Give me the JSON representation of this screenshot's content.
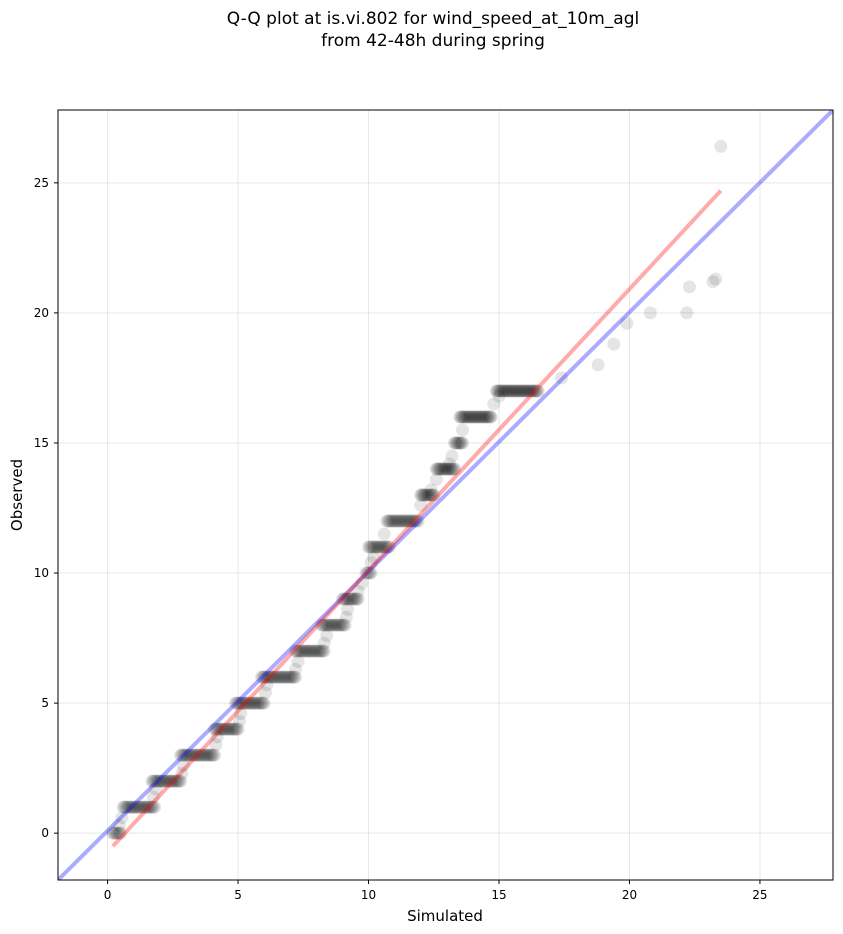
{
  "chart_data": {
    "type": "scatter",
    "title_line1": "Q-Q plot at is.vi.802 for wind_speed_at_10m_agl",
    "title_line2": "from 42-48h during spring",
    "xlabel": "Simulated",
    "ylabel": "Observed",
    "xlim": [
      -1.9,
      27.8
    ],
    "ylim": [
      -1.8,
      27.8
    ],
    "xticks": [
      0,
      5,
      10,
      15,
      20,
      25
    ],
    "yticks": [
      0,
      5,
      10,
      15,
      20,
      25
    ],
    "grid": true,
    "colors": {
      "points": "#000000",
      "identity_line": "#0000ff",
      "fit_line": "#ff0000",
      "grid": "#b0b0b0"
    },
    "reference_line": {
      "name": "1:1 line",
      "from": [
        -1.9,
        -1.8
      ],
      "to": [
        27.8,
        27.8
      ]
    },
    "fit_line": {
      "from": [
        0.2,
        -0.5
      ],
      "to": [
        23.5,
        24.7
      ]
    },
    "series": [
      {
        "steps": [
          {
            "y": 0,
            "x0": 0.2,
            "x1": 0.5
          },
          {
            "y": 1,
            "x0": 0.6,
            "x1": 1.8
          },
          {
            "y": 2,
            "x0": 1.7,
            "x1": 2.8
          },
          {
            "y": 3,
            "x0": 2.8,
            "x1": 4.1
          },
          {
            "y": 4,
            "x0": 4.1,
            "x1": 5.0
          },
          {
            "y": 5,
            "x0": 4.9,
            "x1": 6.0
          },
          {
            "y": 6,
            "x0": 5.9,
            "x1": 7.2
          },
          {
            "y": 7,
            "x0": 7.2,
            "x1": 8.3
          },
          {
            "y": 8,
            "x0": 8.2,
            "x1": 9.1
          },
          {
            "y": 9,
            "x0": 9.0,
            "x1": 9.6
          },
          {
            "y": 10,
            "x0": 9.9,
            "x1": 10.1
          },
          {
            "y": 11,
            "x0": 10.0,
            "x1": 10.8
          },
          {
            "y": 12,
            "x0": 10.7,
            "x1": 11.9
          },
          {
            "y": 13,
            "x0": 12.0,
            "x1": 12.5
          },
          {
            "y": 14,
            "x0": 12.6,
            "x1": 13.3
          },
          {
            "y": 15,
            "x0": 13.3,
            "x1": 13.6
          },
          {
            "y": 16,
            "x0": 13.5,
            "x1": 14.7
          },
          {
            "y": 17,
            "x0": 14.9,
            "x1": 16.5
          }
        ],
        "transitions": [
          [
            0.45,
            0.3
          ],
          [
            0.55,
            0.6
          ],
          [
            1.75,
            1.4
          ],
          [
            1.85,
            1.7
          ],
          [
            2.85,
            2.3
          ],
          [
            2.9,
            2.6
          ],
          [
            4.15,
            3.4
          ],
          [
            4.2,
            3.7
          ],
          [
            5.05,
            4.3
          ],
          [
            5.1,
            4.6
          ],
          [
            6.05,
            5.4
          ],
          [
            6.1,
            5.7
          ],
          [
            7.2,
            6.3
          ],
          [
            7.3,
            6.6
          ],
          [
            8.3,
            7.3
          ],
          [
            8.4,
            7.6
          ],
          [
            9.15,
            8.3
          ],
          [
            9.2,
            8.6
          ],
          [
            9.6,
            9.3
          ],
          [
            9.75,
            9.6
          ],
          [
            10.1,
            10.4
          ],
          [
            10.2,
            10.6
          ],
          [
            10.6,
            11.5
          ],
          [
            12.0,
            12.6
          ],
          [
            12.4,
            13.2
          ],
          [
            12.6,
            13.6
          ],
          [
            13.1,
            14.2
          ],
          [
            13.2,
            14.5
          ],
          [
            13.6,
            15.5
          ],
          [
            14.8,
            16.5
          ],
          [
            15.0,
            16.8
          ]
        ],
        "tail": [
          [
            17.4,
            17.5
          ],
          [
            18.8,
            18.0
          ],
          [
            19.4,
            18.8
          ],
          [
            19.9,
            19.6
          ],
          [
            20.8,
            20.0
          ],
          [
            22.2,
            20.0
          ],
          [
            22.3,
            21.0
          ],
          [
            23.2,
            21.2
          ],
          [
            23.3,
            21.3
          ],
          [
            23.5,
            26.4
          ]
        ]
      }
    ]
  }
}
